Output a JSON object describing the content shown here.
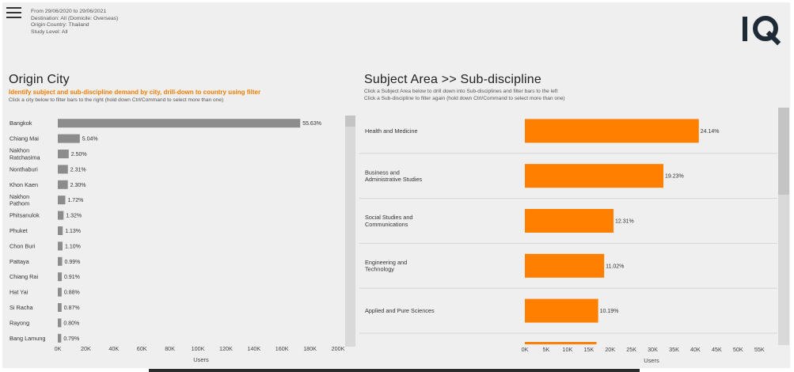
{
  "header": {
    "filters": [
      "From 29/06/2020 to 29/06/2021",
      "Destination: All (Domicile: Overseas)",
      "Origin Country: Thailand",
      "Study Level: All"
    ],
    "logo_text": "IQ"
  },
  "left": {
    "title": "Origin City",
    "subtitle": "Identify subject and sub-discipline demand by city, drill-down to country using filter",
    "note": "Click a city below to filter bars to the right (hold down Ctrl/Command to select more than one)"
  },
  "right": {
    "title": "Subject Area >> Sub-discipline",
    "note1": "Click a Subject Area below to drill down into Sub-disciplines and filter bars to the left",
    "note2": "Click a Sub-discipline to filter again (hold down Ctrl/Command to select more than one)"
  },
  "colors": {
    "grey_bar": "#8c8c8c",
    "orange_bar": "#ff8000",
    "background": "#efefef"
  },
  "chart_data": [
    {
      "type": "bar",
      "orientation": "horizontal",
      "categories": [
        "Bangkok",
        "Chiang Mai",
        "Nakhon Ratchasima",
        "Nonthaburi",
        "Khon Kaen",
        "Nakhon Pathom",
        "Phitsanulok",
        "Phuket",
        "Chon Buri",
        "Pattaya",
        "Chiang Rai",
        "Hat Yai",
        "Si Racha",
        "Rayong",
        "Bang Lamung"
      ],
      "category_lines": [
        [
          "Bangkok"
        ],
        [
          "Chiang Mai"
        ],
        [
          "Nakhon",
          "Ratchasima"
        ],
        [
          "Nonthaburi"
        ],
        [
          "Khon Kaen"
        ],
        [
          "Nakhon",
          "Pathom"
        ],
        [
          "Phitsanulok"
        ],
        [
          "Phuket"
        ],
        [
          "Chon Buri"
        ],
        [
          "Pattaya"
        ],
        [
          "Chiang Rai"
        ],
        [
          "Hat Yai"
        ],
        [
          "Si Racha"
        ],
        [
          "Rayong"
        ],
        [
          "Bang Lamung"
        ]
      ],
      "values": [
        173000,
        15700,
        7800,
        7200,
        7150,
        5350,
        4100,
        3500,
        3400,
        3100,
        2850,
        2750,
        2700,
        2500,
        2450
      ],
      "value_labels": [
        "55.63%",
        "5.04%",
        "2.50%",
        "2.31%",
        "2.30%",
        "1.72%",
        "1.32%",
        "1.13%",
        "1.10%",
        "0.99%",
        "0.91%",
        "0.88%",
        "0.87%",
        "0.80%",
        "0.79%"
      ],
      "xlim": [
        0,
        200000
      ],
      "xticks": [
        0,
        20000,
        40000,
        60000,
        80000,
        100000,
        120000,
        140000,
        160000,
        180000,
        200000
      ],
      "xtick_labels": [
        "0K",
        "20K",
        "40K",
        "60K",
        "80K",
        "100K",
        "120K",
        "140K",
        "160K",
        "180K",
        "200K"
      ],
      "xlabel": "Users",
      "grid": false
    },
    {
      "type": "bar",
      "orientation": "horizontal",
      "categories": [
        "Health and Medicine",
        "Business and Administrative Studies",
        "Social Studies and Communications",
        "Engineering and Technology",
        "Applied and Pure Sciences"
      ],
      "category_lines": [
        [
          "Health and Medicine"
        ],
        [
          "Business and",
          "Administrative Studies"
        ],
        [
          "Social Studies and",
          "Communications"
        ],
        [
          "Engineering and",
          "Technology"
        ],
        [
          "Applied and Pure Sciences"
        ]
      ],
      "values": [
        40800,
        32500,
        20800,
        18600,
        17200
      ],
      "value_labels": [
        "24.14%",
        "19.23%",
        "12.31%",
        "11.02%",
        "10.19%"
      ],
      "partial_next_value": 16800,
      "xlim": [
        0,
        57000
      ],
      "xticks": [
        0,
        5000,
        10000,
        15000,
        20000,
        25000,
        30000,
        35000,
        40000,
        45000,
        50000,
        55000
      ],
      "xtick_labels": [
        "0K",
        "5K",
        "10K",
        "15K",
        "20K",
        "25K",
        "30K",
        "35K",
        "40K",
        "45K",
        "50K",
        "55K"
      ],
      "xlabel": "Users",
      "grid": false
    }
  ]
}
